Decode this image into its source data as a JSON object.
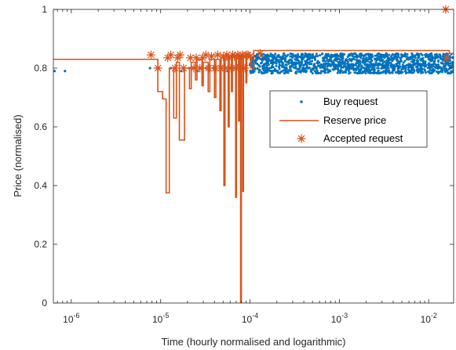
{
  "chart_data": {
    "type": "scatter",
    "xlabel": "Time (hourly normalised and logarithmic)",
    "ylabel": "Price (normalised)",
    "x_scale": "log",
    "xlim": [
      6.3e-07,
      0.019
    ],
    "ylim": [
      0,
      1
    ],
    "x_ticks": [
      {
        "value": 1e-06,
        "base": "10",
        "exp": "-6"
      },
      {
        "value": 1e-05,
        "base": "10",
        "exp": "-5"
      },
      {
        "value": 0.0001,
        "base": "10",
        "exp": "-4"
      },
      {
        "value": 0.001,
        "base": "10",
        "exp": "-3"
      },
      {
        "value": 0.01,
        "base": "10",
        "exp": "-2"
      }
    ],
    "y_ticks": [
      {
        "value": 0,
        "label": "0"
      },
      {
        "value": 0.2,
        "label": "0.2"
      },
      {
        "value": 0.4,
        "label": "0.4"
      },
      {
        "value": 0.6,
        "label": "0.6"
      },
      {
        "value": 0.8,
        "label": "0.8"
      },
      {
        "value": 1,
        "label": "1"
      }
    ],
    "grid": false,
    "legend_position": "center-right",
    "colors": {
      "buy": "#0072BD",
      "reserve": "#D95319",
      "accepted": "#D95319",
      "axis": "#262626"
    },
    "series": [
      {
        "name": "Buy request",
        "marker": "dot",
        "points": [
          [
            6.5e-07,
            0.79
          ],
          [
            8.5e-07,
            0.79
          ],
          [
            7.6e-06,
            0.8
          ],
          [
            9.5e-06,
            0.8
          ],
          [
            1.3e-05,
            0.8
          ],
          [
            1.7e-05,
            0.79
          ],
          [
            2.1e-05,
            0.8
          ],
          [
            2.6e-05,
            0.79
          ],
          [
            3.2e-05,
            0.8
          ],
          [
            3.9e-05,
            0.8
          ],
          [
            4.8e-05,
            0.8
          ],
          [
            5.6e-05,
            0.79
          ],
          [
            6.5e-05,
            0.8
          ],
          [
            7.4e-05,
            0.81
          ],
          [
            8.2e-05,
            0.8
          ],
          [
            9e-05,
            0.81
          ],
          [
            0.0001,
            0.81
          ],
          [
            0.00011,
            0.81
          ]
        ],
        "band": {
          "x_range": [
            0.0001,
            0.019
          ],
          "y_range": [
            0.782,
            0.85
          ]
        }
      },
      {
        "name": "Reserve price",
        "line": "step",
        "points": [
          [
            6.3e-07,
            0.83
          ],
          [
            9.3e-06,
            0.83
          ],
          [
            9.3e-06,
            0.72
          ],
          [
            1.05e-05,
            0.72
          ],
          [
            1.05e-05,
            0.695
          ],
          [
            1.15e-05,
            0.695
          ],
          [
            1.15e-05,
            0.375
          ],
          [
            1.25e-05,
            0.375
          ],
          [
            1.25e-05,
            0.8
          ],
          [
            1.4e-05,
            0.8
          ],
          [
            1.4e-05,
            0.63
          ],
          [
            1.5e-05,
            0.63
          ],
          [
            1.5e-05,
            0.82
          ],
          [
            1.62e-05,
            0.82
          ],
          [
            1.62e-05,
            0.555
          ],
          [
            1.85e-05,
            0.555
          ],
          [
            1.85e-05,
            0.8
          ],
          [
            2.1e-05,
            0.8
          ],
          [
            2.1e-05,
            0.73
          ],
          [
            2.2e-05,
            0.73
          ],
          [
            2.2e-05,
            0.82
          ],
          [
            2.45e-05,
            0.82
          ],
          [
            2.45e-05,
            0.76
          ],
          [
            2.55e-05,
            0.76
          ],
          [
            2.55e-05,
            0.83
          ],
          [
            2.9e-05,
            0.83
          ],
          [
            2.9e-05,
            0.74
          ],
          [
            3e-05,
            0.74
          ],
          [
            3e-05,
            0.82
          ],
          [
            3.4e-05,
            0.82
          ],
          [
            3.4e-05,
            0.72
          ],
          [
            3.55e-05,
            0.72
          ],
          [
            3.55e-05,
            0.83
          ],
          [
            4e-05,
            0.83
          ],
          [
            4e-05,
            0.7
          ],
          [
            4.15e-05,
            0.7
          ],
          [
            4.15e-05,
            0.83
          ],
          [
            4.6e-05,
            0.83
          ],
          [
            4.6e-05,
            0.655
          ],
          [
            4.75e-05,
            0.655
          ],
          [
            4.75e-05,
            0.835
          ],
          [
            5.1e-05,
            0.835
          ],
          [
            5.1e-05,
            0.4
          ],
          [
            5.25e-05,
            0.4
          ],
          [
            5.25e-05,
            0.84
          ],
          [
            5.7e-05,
            0.84
          ],
          [
            5.7e-05,
            0.6
          ],
          [
            5.85e-05,
            0.6
          ],
          [
            5.85e-05,
            0.84
          ],
          [
            6.2e-05,
            0.84
          ],
          [
            6.2e-05,
            0.72
          ],
          [
            6.35e-05,
            0.72
          ],
          [
            6.35e-05,
            0.845
          ],
          [
            6.9e-05,
            0.845
          ],
          [
            6.9e-05,
            0.36
          ],
          [
            7.05e-05,
            0.36
          ],
          [
            7.05e-05,
            0.84
          ],
          [
            7.45e-05,
            0.84
          ],
          [
            7.45e-05,
            0.62
          ],
          [
            7.6e-05,
            0.62
          ],
          [
            7.6e-05,
            0.845
          ],
          [
            7.85e-05,
            0.845
          ],
          [
            7.85e-05,
            0.0
          ],
          [
            8e-05,
            0.0
          ],
          [
            8e-05,
            0.84
          ],
          [
            8.3e-05,
            0.84
          ],
          [
            8.3e-05,
            0.38
          ],
          [
            8.45e-05,
            0.38
          ],
          [
            8.45e-05,
            0.845
          ],
          [
            9e-05,
            0.845
          ],
          [
            9e-05,
            0.75
          ],
          [
            9.2e-05,
            0.75
          ],
          [
            9.2e-05,
            0.845
          ],
          [
            0.000102,
            0.845
          ],
          [
            0.000102,
            0.8
          ],
          [
            0.00011,
            0.8
          ],
          [
            0.00011,
            0.86
          ],
          [
            0.017,
            0.86
          ],
          [
            0.017,
            0.85
          ],
          [
            0.019,
            0.85
          ]
        ]
      },
      {
        "name": "Accepted request",
        "marker": "asterisk",
        "points": [
          [
            7.8e-06,
            0.845
          ],
          [
            9.3e-06,
            0.8
          ],
          [
            1.2e-05,
            0.835
          ],
          [
            1.3e-05,
            0.845
          ],
          [
            1.45e-05,
            0.8
          ],
          [
            1.55e-05,
            0.835
          ],
          [
            1.65e-05,
            0.845
          ],
          [
            1.8e-05,
            0.8
          ],
          [
            2.15e-05,
            0.835
          ],
          [
            2.35e-05,
            0.8
          ],
          [
            2.5e-05,
            0.835
          ],
          [
            2.75e-05,
            0.8
          ],
          [
            2.95e-05,
            0.835
          ],
          [
            3.2e-05,
            0.845
          ],
          [
            3.45e-05,
            0.8
          ],
          [
            3.7e-05,
            0.84
          ],
          [
            4.1e-05,
            0.8
          ],
          [
            4.35e-05,
            0.845
          ],
          [
            4.7e-05,
            0.8
          ],
          [
            5e-05,
            0.84
          ],
          [
            5.3e-05,
            0.8
          ],
          [
            5.5e-05,
            0.845
          ],
          [
            5.8e-05,
            0.835
          ],
          [
            6.1e-05,
            0.8
          ],
          [
            6.4e-05,
            0.845
          ],
          [
            6.7e-05,
            0.84
          ],
          [
            7e-05,
            0.8
          ],
          [
            7.3e-05,
            0.845
          ],
          [
            7.6e-05,
            0.84
          ],
          [
            7.9e-05,
            0.8
          ],
          [
            8.2e-05,
            0.845
          ],
          [
            8.5e-05,
            0.84
          ],
          [
            8.8e-05,
            0.8
          ],
          [
            9.1e-05,
            0.845
          ],
          [
            9.5e-05,
            0.845
          ],
          [
            0.0001,
            0.84
          ],
          [
            0.00013,
            0.85
          ],
          [
            0.0155,
            1.0
          ],
          [
            0.016,
            0.835
          ]
        ]
      }
    ]
  }
}
